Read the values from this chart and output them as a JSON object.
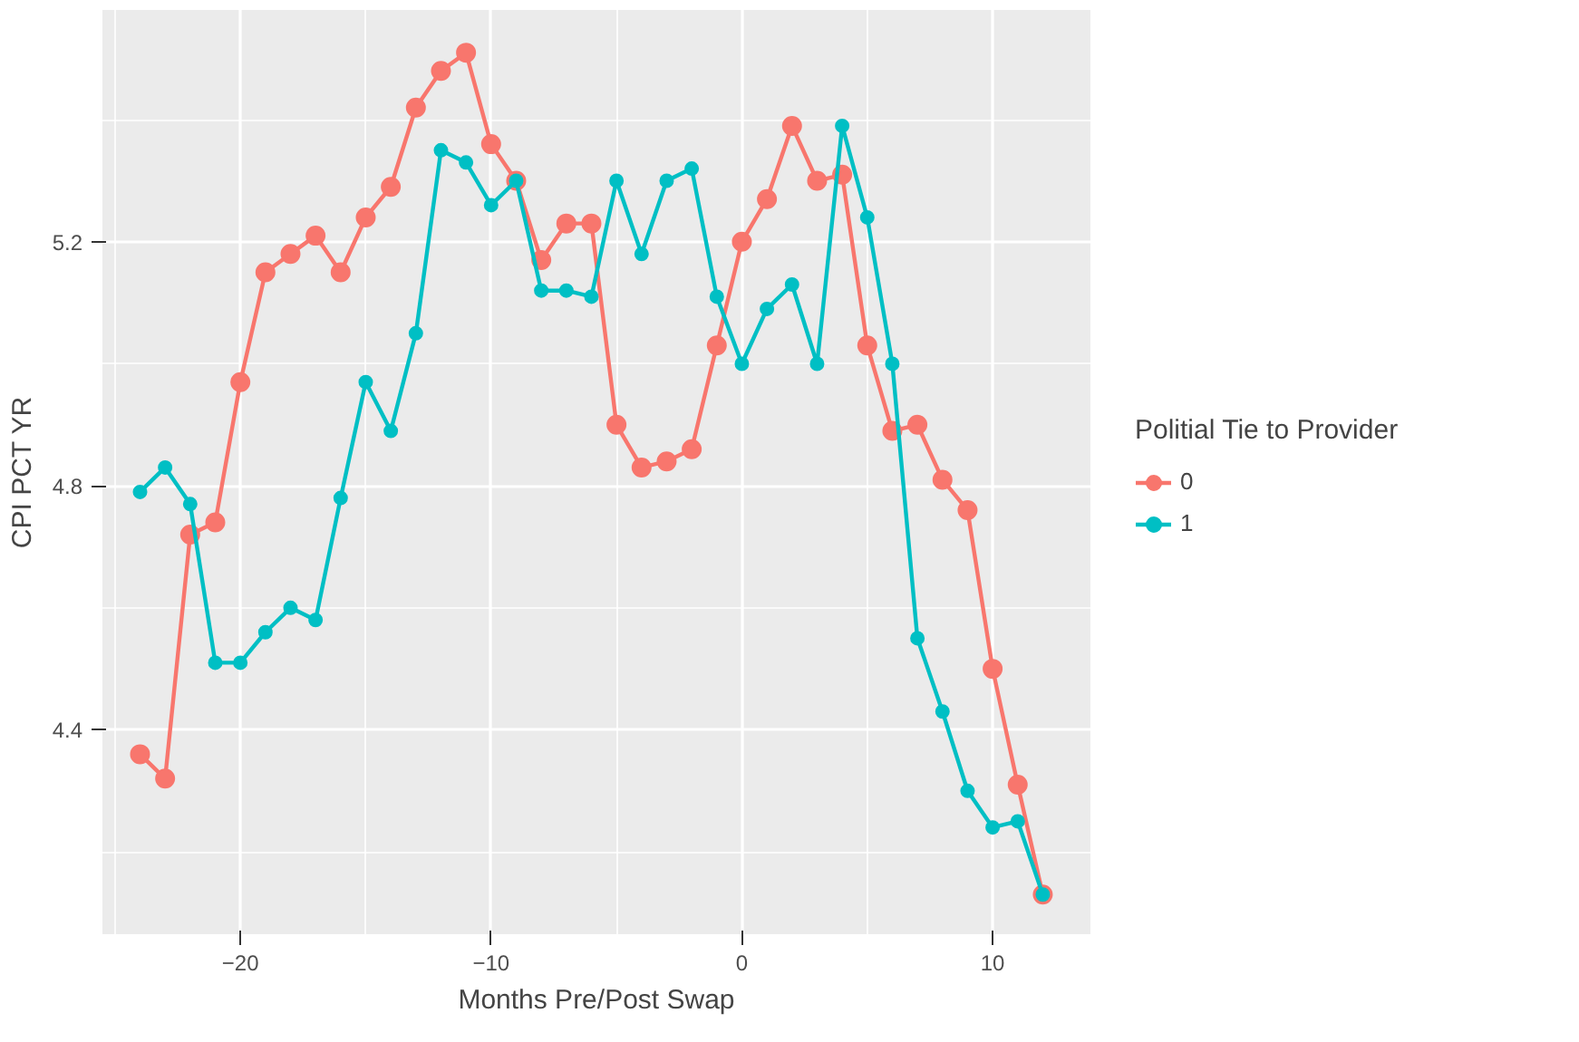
{
  "chart_data": {
    "type": "line",
    "xlabel": "Months Pre/Post Swap",
    "ylabel": "CPI PCT YR",
    "legend_title": "Politial Tie to Provider",
    "legend": "right",
    "grid": true,
    "marker": "circle",
    "line_style": "solid",
    "xlim": [
      -25.5,
      13.9
    ],
    "ylim": [
      4.065,
      5.58
    ],
    "xticks": [
      -20,
      -10,
      0,
      10
    ],
    "yticks": [
      4.4,
      4.8,
      5.2
    ],
    "x": [
      -24,
      -23,
      -22,
      -21,
      -20,
      -19,
      -18,
      -17,
      -16,
      -15,
      -14,
      -13,
      -12,
      -11,
      -10,
      -9,
      -8,
      -7,
      -6,
      -5,
      -4,
      -3,
      -2,
      -1,
      0,
      1,
      2,
      3,
      4,
      5,
      6,
      7,
      8,
      9,
      10,
      11,
      12
    ],
    "series": [
      {
        "name": "0",
        "color": "#f8766d",
        "values": [
          4.36,
          4.32,
          4.72,
          4.74,
          4.97,
          5.15,
          5.18,
          5.21,
          5.15,
          5.24,
          5.29,
          5.42,
          5.48,
          5.51,
          5.36,
          5.3,
          5.17,
          5.23,
          5.23,
          4.9,
          4.83,
          4.84,
          4.86,
          5.03,
          5.2,
          5.27,
          5.39,
          5.3,
          5.31,
          5.03,
          4.89,
          4.9,
          4.81,
          4.76,
          4.5,
          4.31,
          4.13
        ]
      },
      {
        "name": "1",
        "color": "#00bfc4",
        "values": [
          4.79,
          4.83,
          4.77,
          4.51,
          4.51,
          4.56,
          4.6,
          4.58,
          4.78,
          4.97,
          4.89,
          5.05,
          5.35,
          5.33,
          5.26,
          5.3,
          5.12,
          5.12,
          5.11,
          5.3,
          5.18,
          5.3,
          5.32,
          5.11,
          5.0,
          5.09,
          5.13,
          5.0,
          5.39,
          5.24,
          5.0,
          4.55,
          4.43,
          4.3,
          4.24,
          4.25,
          4.13
        ]
      }
    ]
  }
}
